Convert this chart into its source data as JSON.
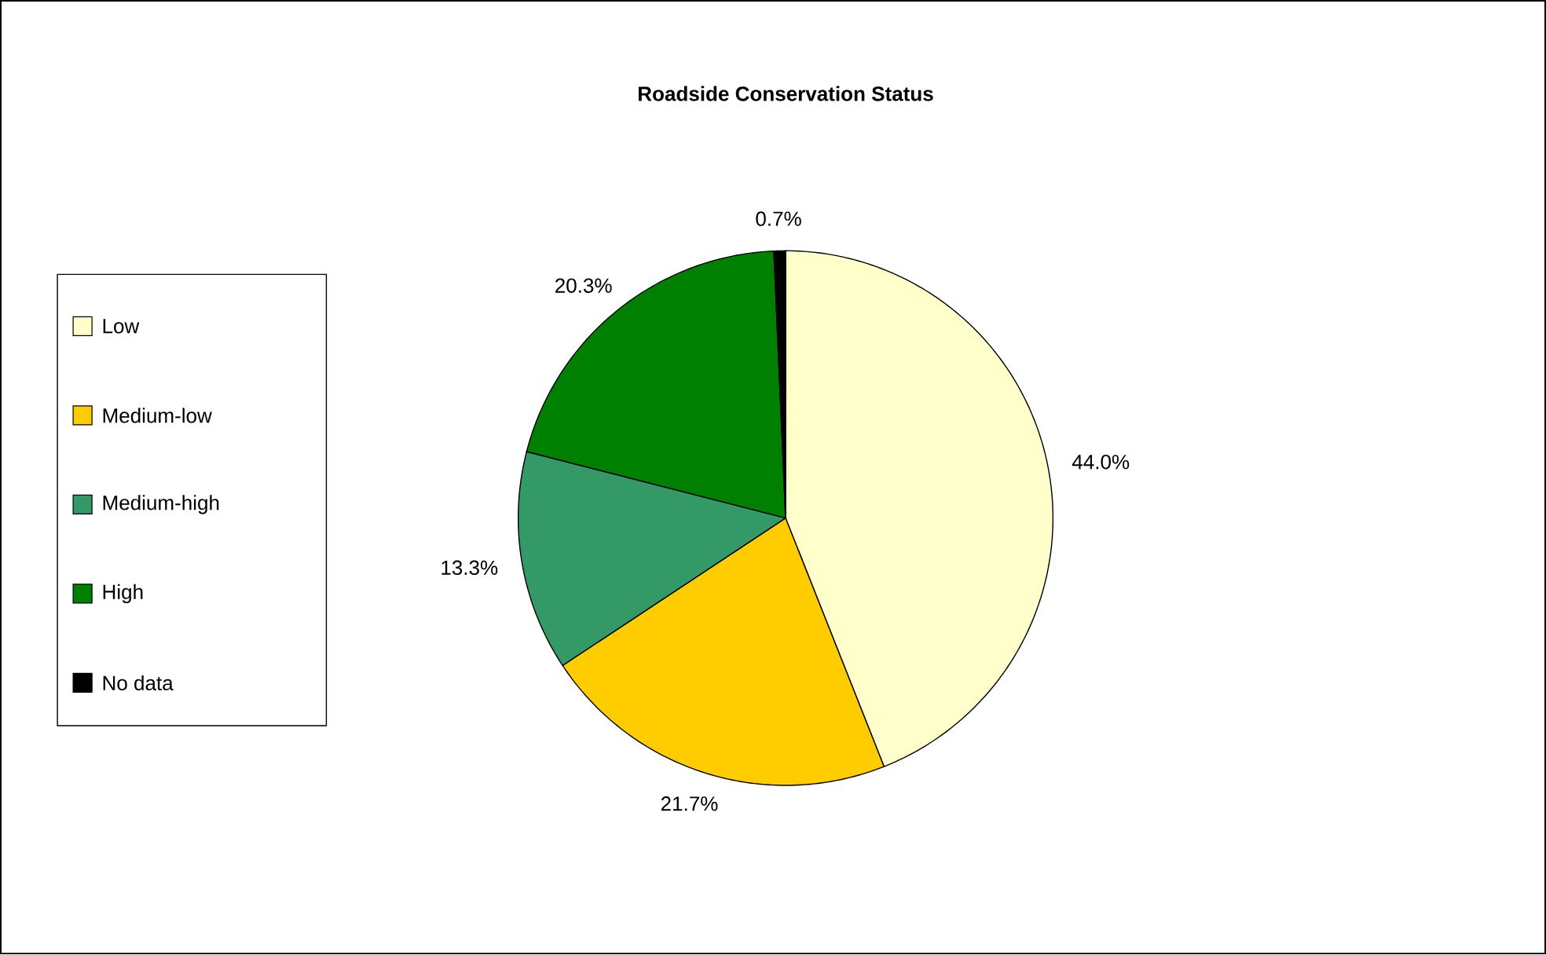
{
  "chart_data": {
    "type": "pie",
    "title": "Roadside Conservation Status",
    "categories": [
      "Low",
      "Medium-low",
      "Medium-high",
      "High",
      "No data"
    ],
    "values": [
      44.0,
      21.7,
      13.3,
      20.3,
      0.7
    ],
    "colors": [
      "#ffffcc",
      "#ffcc00",
      "#339966",
      "#008000",
      "#000000"
    ],
    "value_labels": [
      "44.0%",
      "21.7%",
      "13.3%",
      "20.3%",
      "0.7%"
    ],
    "legend": "left"
  }
}
